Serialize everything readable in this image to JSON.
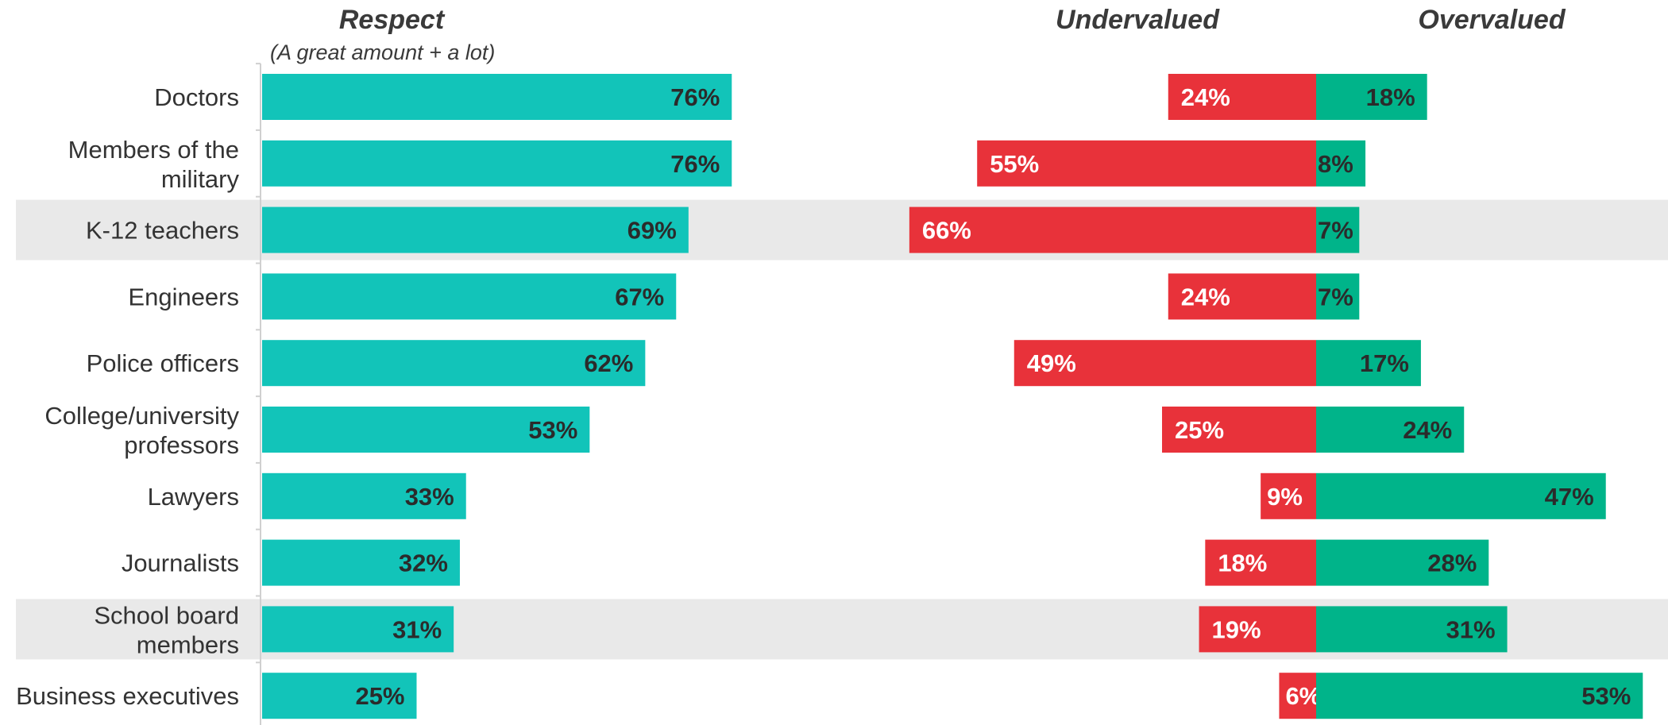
{
  "chart_data": {
    "type": "bar",
    "headers": {
      "respect": "Respect",
      "respect_sub": "(A great amount + a lot)",
      "undervalued": "Undervalued",
      "overvalued": "Overvalued"
    },
    "categories": [
      [
        "Doctors"
      ],
      [
        "Members of the",
        "military"
      ],
      [
        "K-12 teachers"
      ],
      [
        "Engineers"
      ],
      [
        "Police officers"
      ],
      [
        "College/university",
        "professors"
      ],
      [
        "Lawyers"
      ],
      [
        "Journalists"
      ],
      [
        "School board",
        "members"
      ],
      [
        "Business executives"
      ]
    ],
    "highlighted_rows": [
      2,
      8
    ],
    "series": [
      {
        "key": "respect",
        "values": [
          76,
          76,
          69,
          67,
          62,
          53,
          33,
          32,
          31,
          25
        ],
        "labels": [
          "76%",
          "76%",
          "69%",
          "67%",
          "62%",
          "53%",
          "33%",
          "32%",
          "31%",
          "25%"
        ]
      },
      {
        "key": "undervalued",
        "values": [
          24,
          55,
          66,
          24,
          49,
          25,
          9,
          18,
          19,
          6
        ],
        "labels": [
          "24%",
          "55%",
          "66%",
          "24%",
          "49%",
          "25%",
          "9%",
          "18%",
          "19%",
          "6%"
        ]
      },
      {
        "key": "overvalued",
        "values": [
          18,
          8,
          7,
          7,
          17,
          24,
          47,
          28,
          31,
          53
        ],
        "labels": [
          "18%",
          "8%",
          "7%",
          "7%",
          "17%",
          "24%",
          "47%",
          "28%",
          "31%",
          "53%"
        ]
      }
    ],
    "colors": {
      "respect": "#12c4b9",
      "undervalued": "#e8323a",
      "overvalued": "#00b48a",
      "highlight": "#e9e9e9",
      "label_dark": "#2b2b2b",
      "label_light": "#ffffff"
    }
  }
}
